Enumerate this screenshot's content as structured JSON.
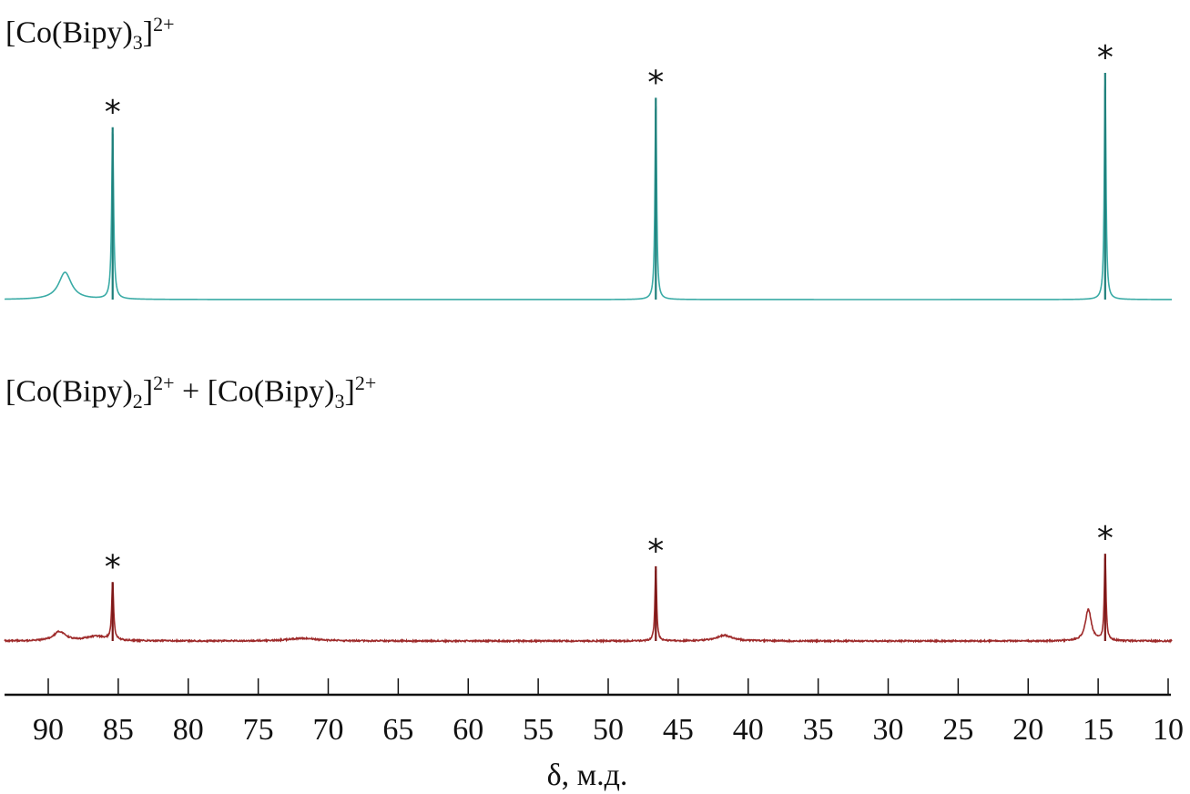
{
  "chart_data": [
    {
      "type": "line",
      "title": "[Co(Bipy)3]2+",
      "title_parts": {
        "a": "[Co(Bipy)",
        "sub": "3",
        "b": "]",
        "sup": "2+"
      },
      "color": "#3aaba6",
      "peak_color": "#1f7f7a",
      "xlabel": "δ, м.д.",
      "xlim": [
        93.1,
        10
      ],
      "x_reversed": true,
      "xticks": [
        "90",
        "85",
        "80",
        "75",
        "70",
        "65",
        "60",
        "55",
        "50",
        "45",
        "40",
        "35",
        "30",
        "25",
        "20",
        "15",
        "10"
      ],
      "peaks": [
        {
          "ppm": 88.8,
          "intensity": 0.12,
          "width": 0.55,
          "marked": false
        },
        {
          "ppm": 85.4,
          "intensity": 0.76,
          "width": 0.08,
          "marked": true
        },
        {
          "ppm": 46.6,
          "intensity": 0.89,
          "width": 0.07,
          "marked": true
        },
        {
          "ppm": 14.5,
          "intensity": 1.0,
          "width": 0.07,
          "marked": true
        }
      ],
      "marker": "*"
    },
    {
      "type": "line",
      "title": "[Co(Bipy)2]2+ + [Co(Bipy)3]2+",
      "title_parts": {
        "a": "[Co(Bipy)",
        "sub": "2",
        "b": "]",
        "sup": "2+",
        "plus": " + ",
        "c": "[Co(Bipy)",
        "sub2": "3",
        "d": "]",
        "sup2": "2+"
      },
      "color": "#9e2a2a",
      "peak_color": "#7a1717",
      "xlim": [
        93.1,
        10
      ],
      "peaks": [
        {
          "ppm": 89.2,
          "intensity": 0.04,
          "width": 0.5,
          "marked": false
        },
        {
          "ppm": 86.6,
          "intensity": 0.02,
          "width": 0.9,
          "marked": false
        },
        {
          "ppm": 85.4,
          "intensity": 0.26,
          "width": 0.08,
          "marked": true
        },
        {
          "ppm": 71.8,
          "intensity": 0.012,
          "width": 1.3,
          "marked": false
        },
        {
          "ppm": 46.6,
          "intensity": 0.33,
          "width": 0.07,
          "marked": true
        },
        {
          "ppm": 41.7,
          "intensity": 0.025,
          "width": 0.7,
          "marked": false
        },
        {
          "ppm": 15.7,
          "intensity": 0.14,
          "width": 0.25,
          "marked": false
        },
        {
          "ppm": 14.5,
          "intensity": 0.385,
          "width": 0.07,
          "marked": true
        }
      ],
      "marker": "*"
    }
  ]
}
